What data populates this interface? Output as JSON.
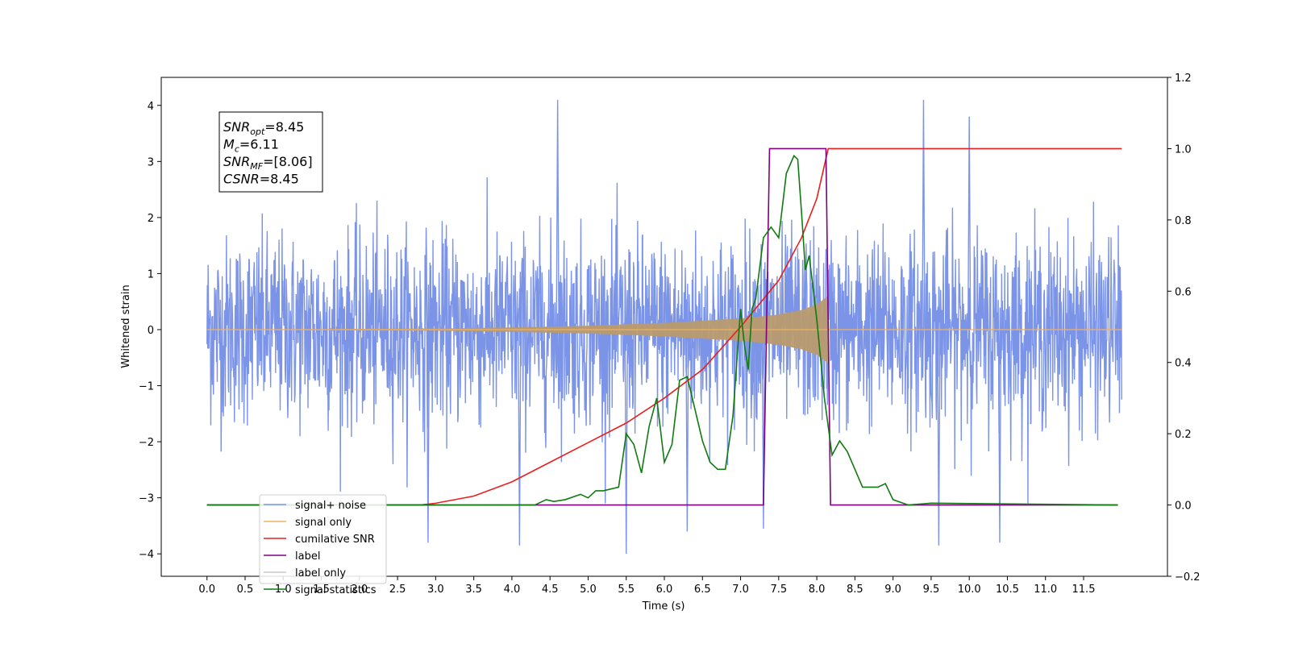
{
  "chart_data": {
    "type": "line",
    "title": "",
    "xlabel": "Time (s)",
    "ylabel": "Whitened strain",
    "xlim": [
      -0.6,
      12.6
    ],
    "ylim": [
      -4.4,
      4.5
    ],
    "y2lim": [
      -0.2,
      1.2
    ],
    "x_ticks": [
      0.0,
      0.5,
      1.0,
      1.5,
      2.0,
      2.5,
      3.0,
      3.5,
      4.0,
      4.5,
      5.0,
      5.5,
      6.0,
      6.5,
      7.0,
      7.5,
      8.0,
      8.5,
      9.0,
      9.5,
      10.0,
      10.5,
      11.0,
      11.5
    ],
    "x_tick_labels": [
      "0.0",
      "0.5",
      "1.0",
      "1.5",
      "2.0",
      "2.5",
      "3.0",
      "3.5",
      "4.0",
      "4.5",
      "5.0",
      "5.5",
      "6.0",
      "6.5",
      "7.0",
      "7.5",
      "8.0",
      "8.5",
      "9.0",
      "9.5",
      "10.0",
      "10.5",
      "11.0",
      "11.5"
    ],
    "y_ticks": [
      -4,
      -3,
      -2,
      -1,
      0,
      1,
      2,
      3,
      4
    ],
    "y_tick_labels": [
      "−4",
      "−3",
      "−2",
      "−1",
      "0",
      "1",
      "2",
      "3",
      "4"
    ],
    "y2_ticks": [
      -0.2,
      0.0,
      0.2,
      0.4,
      0.6,
      0.8,
      1.0,
      1.2
    ],
    "y2_tick_labels": [
      "−0.2",
      "0.0",
      "0.2",
      "0.4",
      "0.6",
      "0.8",
      "1.0",
      "1.2"
    ],
    "legend_position": "lower-left",
    "grid": false,
    "annotation": [
      {
        "base": "SNR",
        "sub": "opt",
        "rest": "=8.45"
      },
      {
        "base": "M",
        "sub": "c",
        "rest": "=6.11"
      },
      {
        "base": "SNR",
        "sub": "MF",
        "rest": "=[8.06]"
      },
      {
        "base": "CSNR",
        "sub": "",
        "rest": "=8.45"
      }
    ],
    "series": [
      {
        "name": "signal+ noise",
        "axis": "left",
        "color": "#7b94e8",
        "kind": "noise",
        "x_range": [
          0.0,
          12.0
        ],
        "typical_envelope": [
          -2.0,
          2.1
        ],
        "peak_values": [
          {
            "x": 4.6,
            "y": 4.1
          },
          {
            "x": 9.4,
            "y": 4.1
          },
          {
            "x": 10.0,
            "y": 3.8
          },
          {
            "x": 5.5,
            "y": -4.0
          },
          {
            "x": 2.9,
            "y": -3.8
          },
          {
            "x": 4.1,
            "y": -3.85
          },
          {
            "x": 9.6,
            "y": -3.85
          },
          {
            "x": 10.4,
            "y": -3.8
          },
          {
            "x": 6.3,
            "y": -3.6
          },
          {
            "x": 7.3,
            "y": -3.55
          }
        ]
      },
      {
        "name": "signal only",
        "axis": "left",
        "color": "#f0b060",
        "fill_color": "#b89a6e",
        "kind": "chirp_envelope",
        "x": [
          0.0,
          3.0,
          4.0,
          5.0,
          6.0,
          6.5,
          7.0,
          7.5,
          7.8,
          8.0,
          8.15,
          8.16,
          12.0
        ],
        "y": [
          0.0,
          0.02,
          0.04,
          0.07,
          0.12,
          0.16,
          0.2,
          0.27,
          0.35,
          0.45,
          0.6,
          0.0,
          0.0
        ]
      },
      {
        "name": "cumilative SNR",
        "axis": "right",
        "color": "#e8201f",
        "x": [
          0.0,
          2.8,
          3.0,
          3.5,
          4.0,
          4.5,
          5.0,
          5.5,
          6.0,
          6.5,
          7.0,
          7.5,
          7.8,
          8.0,
          8.15,
          12.0
        ],
        "y": [
          0.0,
          0.0,
          0.005,
          0.025,
          0.065,
          0.12,
          0.175,
          0.23,
          0.3,
          0.38,
          0.5,
          0.63,
          0.75,
          0.86,
          1.0,
          1.0
        ]
      },
      {
        "name": "label",
        "axis": "right",
        "color": "#800080",
        "x": [
          0.0,
          7.3,
          7.38,
          8.12,
          8.18,
          11.95
        ],
        "y": [
          0.0,
          0.0,
          1.0,
          1.0,
          0.0,
          0.0
        ]
      },
      {
        "name": "label only",
        "axis": "right",
        "color": "#c8c8c8",
        "hidden_in_plot": true,
        "x": [],
        "y": []
      },
      {
        "name": "signal statistics",
        "axis": "right",
        "color": "#117a11",
        "x": [
          0.0,
          4.3,
          4.45,
          4.55,
          4.7,
          4.9,
          5.0,
          5.1,
          5.2,
          5.4,
          5.5,
          5.6,
          5.7,
          5.8,
          5.9,
          6.0,
          6.1,
          6.2,
          6.3,
          6.4,
          6.5,
          6.6,
          6.7,
          6.8,
          6.9,
          7.0,
          7.05,
          7.1,
          7.15,
          7.2,
          7.3,
          7.4,
          7.5,
          7.6,
          7.7,
          7.75,
          7.8,
          7.85,
          7.9,
          8.0,
          8.1,
          8.2,
          8.3,
          8.4,
          8.5,
          8.6,
          8.8,
          8.9,
          9.0,
          9.2,
          9.5,
          11.95
        ],
        "y": [
          0.0,
          0.0,
          0.015,
          0.01,
          0.015,
          0.03,
          0.02,
          0.04,
          0.04,
          0.05,
          0.2,
          0.17,
          0.09,
          0.22,
          0.3,
          0.12,
          0.17,
          0.35,
          0.36,
          0.27,
          0.18,
          0.12,
          0.1,
          0.1,
          0.25,
          0.55,
          0.45,
          0.38,
          0.55,
          0.58,
          0.75,
          0.78,
          0.75,
          0.93,
          0.98,
          0.97,
          0.82,
          0.66,
          0.7,
          0.52,
          0.3,
          0.14,
          0.18,
          0.15,
          0.1,
          0.05,
          0.05,
          0.06,
          0.015,
          0.0,
          0.005,
          0.0
        ]
      }
    ]
  }
}
